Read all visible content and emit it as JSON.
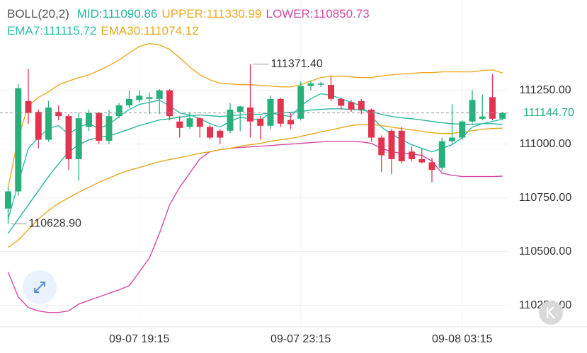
{
  "chart_data": {
    "type": "candlestick",
    "indicator_label": "BOLL(20,2)",
    "categories": [
      null,
      null,
      null,
      null,
      null,
      null,
      null,
      null,
      null,
      null,
      null,
      null,
      null,
      "09-07 19:15",
      null,
      null,
      null,
      null,
      null,
      null,
      null,
      null,
      null,
      null,
      null,
      null,
      null,
      null,
      null,
      "09-07 23:15",
      null,
      null,
      null,
      null,
      null,
      null,
      null,
      null,
      null,
      null,
      null,
      null,
      null,
      null,
      null,
      "09-08 03:15",
      null,
      null,
      null,
      null
    ],
    "open": [
      110700,
      110780,
      111200,
      111150,
      111020,
      111150,
      111130,
      110930,
      111080,
      111145,
      111015,
      111130,
      111180,
      111205,
      111210,
      111210,
      111250,
      111105,
      111080,
      111120,
      111080,
      111062,
      111062,
      111150,
      111170,
      111118,
      111085,
      111210,
      111112,
      111118,
      111270,
      111276,
      111275,
      111210,
      111195,
      111200,
      111160,
      111030,
      111062,
      111062,
      110965,
      110930,
      110915,
      110890,
      111013,
      111030,
      111105,
      111118,
      111218,
      111118
    ],
    "high": [
      110800,
      111280,
      111350,
      111160,
      111200,
      111180,
      111140,
      111145,
      111160,
      111150,
      111160,
      111190,
      111250,
      111250,
      111240,
      111255,
      111255,
      111130,
      111150,
      111125,
      111090,
      111070,
      111190,
      111178,
      111371.4,
      111130,
      111225,
      111215,
      111145,
      111290,
      111295,
      111290,
      111315,
      111215,
      111205,
      111210,
      111165,
      111040,
      111070,
      111080,
      110990,
      110980,
      110935,
      111030,
      111185,
      111110,
      111250,
      111230,
      111325,
      111150
    ],
    "low": [
      110628.9,
      110760,
      111095,
      110980,
      111010,
      111110,
      110880,
      110830,
      111060,
      111000,
      111000,
      111120,
      111170,
      111195,
      111140,
      111140,
      111110,
      111030,
      111070,
      111030,
      111020,
      111000,
      111050,
      111060,
      111030,
      111020,
      111070,
      111080,
      111070,
      111110,
      111250,
      111265,
      111200,
      111160,
      111150,
      111140,
      111010,
      110870,
      110860,
      110910,
      110920,
      110910,
      110822,
      110875,
      111000,
      111020,
      111095,
      111110,
      111110,
      111110
    ],
    "close": [
      110780,
      111260,
      111145,
      111020,
      111170,
      111130,
      110930,
      111120,
      111145,
      111015,
      111130,
      111180,
      111210,
      111225,
      111218,
      111250,
      111130,
      111075,
      111120,
      111080,
      111030,
      111030,
      111160,
      111175,
      111105,
      111085,
      111210,
      111095,
      111092,
      111270,
      111282,
      111282,
      111210,
      111178,
      111160,
      111160,
      111030,
      110948,
      110930,
      110920,
      110930,
      110915,
      110880,
      111013,
      111030,
      111105,
      111205,
      111128,
      111118,
      111144.7
    ],
    "up_color": "#27b07c",
    "down_color": "#e1344f",
    "series": [
      {
        "name": "MID:111090.86",
        "color": "#25b59c",
        "values": [
          110585,
          110651,
          110717,
          110783,
          110849,
          110908,
          110964,
          110997,
          111020,
          111030,
          111039,
          111053,
          111069,
          111086,
          111099,
          111112,
          111118,
          111125,
          111132,
          111135,
          111132,
          111128,
          111132,
          111135,
          111138,
          111138,
          111145,
          111145,
          111148,
          111151,
          111158,
          111161,
          111164,
          111164,
          111161,
          111158,
          111151,
          111138,
          111128,
          111122,
          111118,
          111112,
          111105,
          111099,
          111095,
          111092,
          111092,
          111095,
          111095,
          111090.86
        ]
      },
      {
        "name": "UPPER:111330.99",
        "color": "#f0a823",
        "values": [
          110799,
          111030,
          111178,
          111217,
          111243,
          111276,
          111293,
          111309,
          111322,
          111342,
          111365,
          111391,
          111424,
          111454,
          111467,
          111461,
          111441,
          111401,
          111359,
          111322,
          111299,
          111283,
          111280,
          111276,
          111276,
          111273,
          111270,
          111266,
          111266,
          111276,
          111293,
          111309,
          111316,
          111316,
          111312,
          111309,
          111309,
          111316,
          111322,
          111326,
          111329,
          111332,
          111332,
          111336,
          111336,
          111336,
          111336,
          111342,
          111345,
          111330.99
        ]
      },
      {
        "name": "LOWER:110850.73",
        "color": "#d54aa3",
        "values": [
          110405,
          110289,
          110240,
          110224,
          110217,
          110217,
          110224,
          110256,
          110273,
          110289,
          110306,
          110322,
          110342,
          110405,
          110470,
          110585,
          110717,
          110799,
          110865,
          110931,
          110964,
          110974,
          110980,
          110984,
          110987,
          110990,
          110993,
          110997,
          111000,
          111003,
          111007,
          111010,
          111013,
          111013,
          111013,
          111010,
          111003,
          110980,
          110964,
          110957,
          110954,
          110947,
          110921,
          110865,
          110855,
          110849,
          110849,
          110849,
          110849,
          110850.73
        ]
      },
      {
        "name": "EMA7:111115.72",
        "color": "#2cc0aa",
        "values": [
          110651,
          110816,
          110980,
          111030,
          111072,
          111086,
          111046,
          111079,
          111095,
          111072,
          111092,
          111128,
          111161,
          111184,
          111194,
          111204,
          111178,
          111145,
          111135,
          111118,
          111095,
          111079,
          111105,
          111125,
          111118,
          111112,
          111145,
          111135,
          111128,
          111178,
          111211,
          111234,
          111227,
          111211,
          111194,
          111178,
          111128,
          111079,
          111046,
          111020,
          110997,
          110980,
          110964,
          110980,
          110997,
          111030,
          111079,
          111095,
          111105,
          111115.72
        ]
      },
      {
        "name": "EMA30:111074.12",
        "color": "#e6a91c",
        "values": [
          110520,
          110553,
          110602,
          110651,
          110691,
          110724,
          110750,
          110776,
          110799,
          110822,
          110842,
          110862,
          110878,
          110891,
          110905,
          110918,
          110928,
          110937,
          110947,
          110957,
          110964,
          110974,
          110980,
          110990,
          110997,
          111003,
          111013,
          111020,
          111026,
          111036,
          111046,
          111056,
          111066,
          111076,
          111086,
          111092,
          111092,
          111086,
          111079,
          111072,
          111066,
          111059,
          111053,
          111049,
          111049,
          111056,
          111062,
          111069,
          111072,
          111074.12
        ]
      }
    ],
    "ylim": [
      110150,
      111670
    ],
    "yticks": [
      {
        "value": 111250,
        "label": "111250.00"
      },
      {
        "value": 111000,
        "label": "111000.00"
      },
      {
        "value": 110750,
        "label": "110750.00"
      },
      {
        "value": 110500,
        "label": "110500.00"
      },
      {
        "value": 110250,
        "label": "110250.00"
      }
    ],
    "grid": true,
    "last_price": {
      "value": 111144.7,
      "label": "111144.70"
    },
    "annotations": [
      {
        "value": 111371.4,
        "label": "111371.40",
        "kind": "high"
      },
      {
        "value": 110628.9,
        "label": "110628.90",
        "kind": "low"
      }
    ]
  }
}
